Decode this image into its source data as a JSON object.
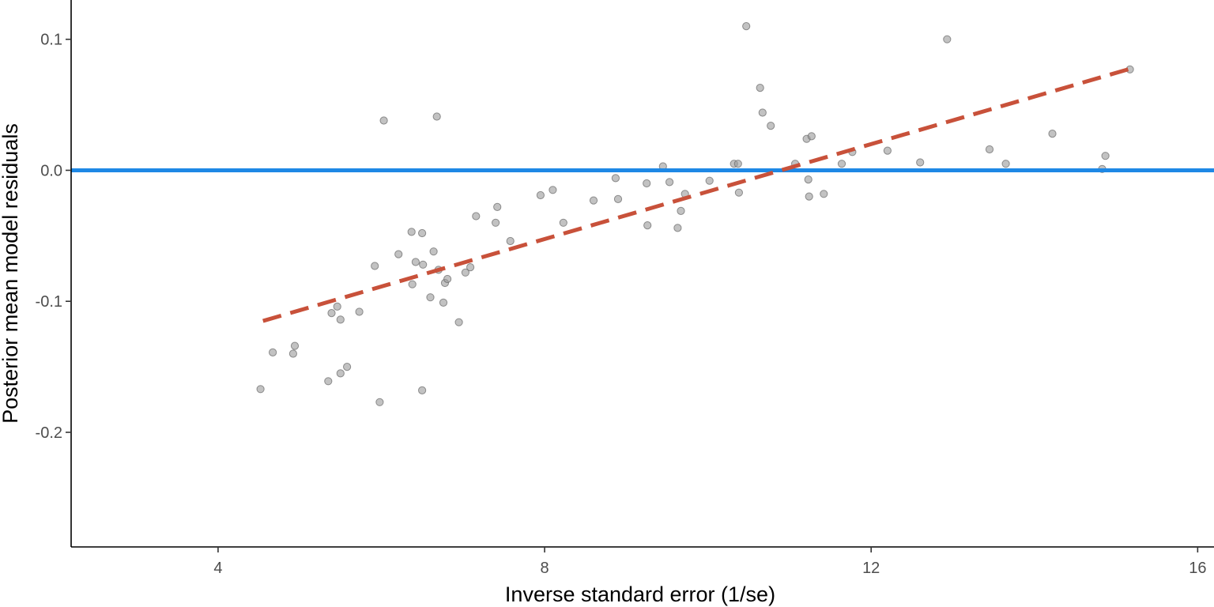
{
  "chart_data": {
    "type": "scatter",
    "title": "",
    "xlabel": "Inverse standard error (1/se)",
    "ylabel": "Posterior mean model residuals",
    "xlim": [
      2.2,
      16.2
    ],
    "ylim": [
      -0.2875,
      0.13
    ],
    "x_ticks": [
      4,
      8,
      12,
      16
    ],
    "x_tick_labels": [
      "4",
      "8",
      "12",
      "16"
    ],
    "y_ticks": [
      -0.2,
      -0.1,
      0.0,
      0.1
    ],
    "y_tick_labels": [
      "-0.2",
      "-0.1",
      "0.0",
      "0.1"
    ],
    "grid": false,
    "legend": "none",
    "point_color": "#999999",
    "point_stroke": "#666666",
    "reference_line": {
      "y": 0.0,
      "color": "#1e88e5"
    },
    "fit_line": {
      "x": [
        4.55,
        15.2
      ],
      "y": [
        -0.115,
        0.078
      ],
      "color": "#c8513a",
      "style": "dashed"
    },
    "points": [
      {
        "x": 4.52,
        "y": -0.167
      },
      {
        "x": 4.67,
        "y": -0.139
      },
      {
        "x": 4.92,
        "y": -0.14
      },
      {
        "x": 4.94,
        "y": -0.134
      },
      {
        "x": 5.35,
        "y": -0.161
      },
      {
        "x": 5.39,
        "y": -0.109
      },
      {
        "x": 5.46,
        "y": -0.104
      },
      {
        "x": 5.5,
        "y": -0.114
      },
      {
        "x": 5.5,
        "y": -0.155
      },
      {
        "x": 5.58,
        "y": -0.15
      },
      {
        "x": 5.73,
        "y": -0.108
      },
      {
        "x": 5.92,
        "y": -0.073
      },
      {
        "x": 5.98,
        "y": -0.177
      },
      {
        "x": 6.03,
        "y": 0.038
      },
      {
        "x": 6.21,
        "y": -0.064
      },
      {
        "x": 6.37,
        "y": -0.047
      },
      {
        "x": 6.38,
        "y": -0.087
      },
      {
        "x": 6.42,
        "y": -0.07
      },
      {
        "x": 6.5,
        "y": -0.048
      },
      {
        "x": 6.51,
        "y": -0.072
      },
      {
        "x": 6.5,
        "y": -0.168
      },
      {
        "x": 6.6,
        "y": -0.097
      },
      {
        "x": 6.64,
        "y": -0.062
      },
      {
        "x": 6.68,
        "y": 0.041
      },
      {
        "x": 6.7,
        "y": -0.076
      },
      {
        "x": 6.76,
        "y": -0.101
      },
      {
        "x": 6.78,
        "y": -0.086
      },
      {
        "x": 6.81,
        "y": -0.083
      },
      {
        "x": 6.95,
        "y": -0.116
      },
      {
        "x": 7.03,
        "y": -0.078
      },
      {
        "x": 7.09,
        "y": -0.074
      },
      {
        "x": 7.16,
        "y": -0.035
      },
      {
        "x": 7.4,
        "y": -0.04
      },
      {
        "x": 7.42,
        "y": -0.028
      },
      {
        "x": 7.58,
        "y": -0.054
      },
      {
        "x": 7.95,
        "y": -0.019
      },
      {
        "x": 8.1,
        "y": -0.015
      },
      {
        "x": 8.23,
        "y": -0.04
      },
      {
        "x": 8.6,
        "y": -0.023
      },
      {
        "x": 8.87,
        "y": -0.006
      },
      {
        "x": 8.9,
        "y": -0.022
      },
      {
        "x": 9.25,
        "y": -0.01
      },
      {
        "x": 9.26,
        "y": -0.042
      },
      {
        "x": 9.45,
        "y": 0.003
      },
      {
        "x": 9.53,
        "y": -0.009
      },
      {
        "x": 9.63,
        "y": -0.044
      },
      {
        "x": 9.67,
        "y": -0.031
      },
      {
        "x": 9.72,
        "y": -0.018
      },
      {
        "x": 10.02,
        "y": -0.008
      },
      {
        "x": 10.32,
        "y": 0.005
      },
      {
        "x": 10.37,
        "y": 0.005
      },
      {
        "x": 10.38,
        "y": -0.017
      },
      {
        "x": 10.47,
        "y": 0.11
      },
      {
        "x": 10.64,
        "y": 0.063
      },
      {
        "x": 10.67,
        "y": 0.044
      },
      {
        "x": 10.77,
        "y": 0.034
      },
      {
        "x": 11.07,
        "y": 0.005
      },
      {
        "x": 11.21,
        "y": 0.024
      },
      {
        "x": 11.23,
        "y": -0.007
      },
      {
        "x": 11.24,
        "y": -0.02
      },
      {
        "x": 11.27,
        "y": 0.026
      },
      {
        "x": 11.42,
        "y": -0.018
      },
      {
        "x": 11.64,
        "y": 0.005
      },
      {
        "x": 11.77,
        "y": 0.014
      },
      {
        "x": 12.2,
        "y": 0.015
      },
      {
        "x": 12.6,
        "y": 0.006
      },
      {
        "x": 12.93,
        "y": 0.1
      },
      {
        "x": 13.45,
        "y": 0.016
      },
      {
        "x": 13.65,
        "y": 0.005
      },
      {
        "x": 14.22,
        "y": 0.028
      },
      {
        "x": 14.83,
        "y": 0.001
      },
      {
        "x": 14.87,
        "y": 0.011
      },
      {
        "x": 15.17,
        "y": 0.077
      }
    ]
  }
}
